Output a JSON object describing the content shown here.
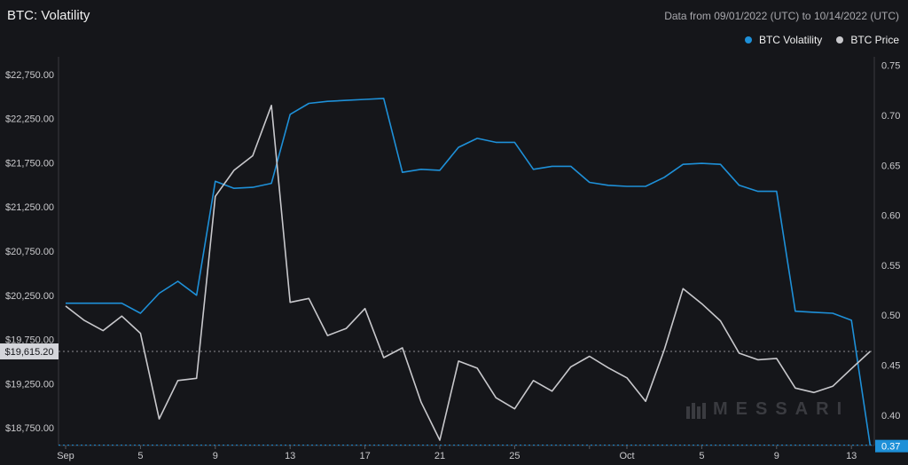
{
  "header": {
    "title": "BTC: Volatility",
    "date_range": "Data from 09/01/2022 (UTC) to 10/14/2022 (UTC)"
  },
  "legend": [
    {
      "label": "BTC Volatility",
      "color": "#1e90d8"
    },
    {
      "label": "BTC Price",
      "color": "#c8c8cc"
    }
  ],
  "watermark": "MESSARI",
  "chart_data": {
    "type": "line",
    "x": [
      "2022-09-01",
      "2022-09-02",
      "2022-09-03",
      "2022-09-04",
      "2022-09-05",
      "2022-09-06",
      "2022-09-07",
      "2022-09-08",
      "2022-09-09",
      "2022-09-10",
      "2022-09-11",
      "2022-09-12",
      "2022-09-13",
      "2022-09-14",
      "2022-09-15",
      "2022-09-16",
      "2022-09-17",
      "2022-09-18",
      "2022-09-19",
      "2022-09-20",
      "2022-09-21",
      "2022-09-22",
      "2022-09-23",
      "2022-09-24",
      "2022-09-25",
      "2022-09-26",
      "2022-09-27",
      "2022-09-28",
      "2022-09-29",
      "2022-09-30",
      "2022-10-01",
      "2022-10-02",
      "2022-10-03",
      "2022-10-04",
      "2022-10-05",
      "2022-10-06",
      "2022-10-07",
      "2022-10-08",
      "2022-10-09",
      "2022-10-10",
      "2022-10-11",
      "2022-10-12",
      "2022-10-13",
      "2022-10-14"
    ],
    "x_ticks": [
      {
        "date": "2022-09-01",
        "label": "Sep"
      },
      {
        "date": "2022-09-05",
        "label": "5"
      },
      {
        "date": "2022-09-09",
        "label": "9"
      },
      {
        "date": "2022-09-13",
        "label": "13"
      },
      {
        "date": "2022-09-17",
        "label": "17"
      },
      {
        "date": "2022-09-21",
        "label": "21"
      },
      {
        "date": "2022-09-25",
        "label": "25"
      },
      {
        "date": "2022-09-29",
        "label": ""
      },
      {
        "date": "2022-10-01",
        "label": "Oct"
      },
      {
        "date": "2022-10-05",
        "label": "5"
      },
      {
        "date": "2022-10-09",
        "label": "9"
      },
      {
        "date": "2022-10-13",
        "label": "13"
      }
    ],
    "series": [
      {
        "name": "BTC Volatility",
        "axis": "right",
        "color": "#1e90d8",
        "values": [
          0.512,
          0.512,
          0.512,
          0.512,
          0.502,
          0.522,
          0.534,
          0.52,
          0.634,
          0.627,
          0.628,
          0.632,
          0.701,
          0.712,
          0.714,
          0.715,
          0.716,
          0.717,
          0.643,
          0.646,
          0.645,
          0.668,
          0.677,
          0.673,
          0.673,
          0.646,
          0.649,
          0.649,
          0.633,
          0.63,
          0.629,
          0.629,
          0.638,
          0.651,
          0.652,
          0.651,
          0.63,
          0.624,
          0.624,
          0.504,
          0.503,
          0.502,
          0.495,
          0.37
        ]
      },
      {
        "name": "BTC Price",
        "axis": "left",
        "color": "#c8c8cc",
        "values": [
          20128,
          19965,
          19850,
          20015,
          19820,
          18850,
          19285,
          19310,
          21370,
          21665,
          21830,
          22400,
          20170,
          20215,
          19795,
          19875,
          20100,
          19545,
          19655,
          19040,
          18610,
          19505,
          19425,
          19090,
          18965,
          19285,
          19165,
          19440,
          19560,
          19430,
          19315,
          19050,
          19635,
          20325,
          20155,
          19960,
          19595,
          19520,
          19535,
          19200,
          19150,
          19220,
          19420,
          19615
        ]
      }
    ],
    "y_left": {
      "min": 18550,
      "max": 22950,
      "ticks": [
        "$22,750.00",
        "$22,250.00",
        "$21,750.00",
        "$21,250.00",
        "$20,750.00",
        "$20,250.00",
        "$19,750.00",
        "$19,250.00",
        "$18,750.00"
      ],
      "tick_values": [
        22750,
        22250,
        21750,
        21250,
        20750,
        20250,
        19750,
        19250,
        18750
      ]
    },
    "y_right": {
      "min": 0.3697,
      "max": 0.7586,
      "ticks": [
        "0.75",
        "0.70",
        "0.65",
        "0.60",
        "0.55",
        "0.50",
        "0.45",
        "0.40"
      ],
      "tick_values": [
        0.75,
        0.7,
        0.65,
        0.6,
        0.55,
        0.5,
        0.45,
        0.4
      ]
    },
    "current_price_label": "$19,615.20",
    "current_vol_label": "0.37",
    "grid": false
  }
}
